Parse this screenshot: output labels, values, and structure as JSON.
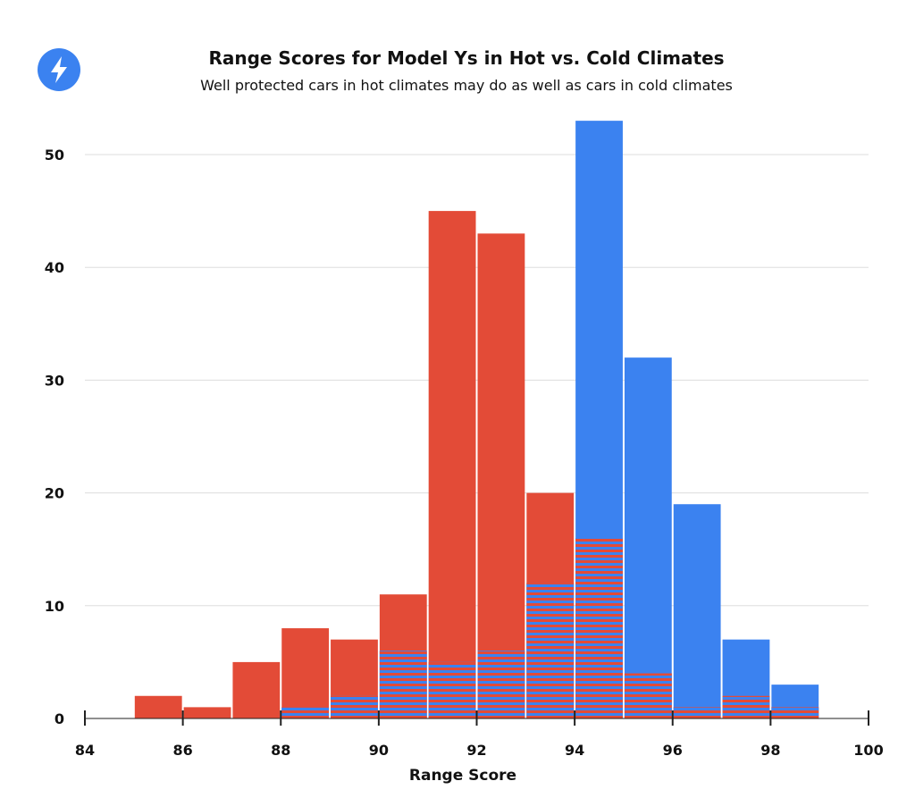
{
  "colors": {
    "hot": "#E34B37",
    "cold": "#3B82F0",
    "grid": "#dddddd",
    "logo": "#3B82F0"
  },
  "logo_icon": "lightning-bolt-icon",
  "chart_data": {
    "type": "bar",
    "title": "Range Scores for Model Ys in Hot vs. Cold Climates",
    "subtitle": "Well protected cars in hot climates may do as well as cars in cold climates",
    "xlabel": "Range Score",
    "ylabel": "",
    "xlim": [
      84,
      100
    ],
    "ylim": [
      0,
      53
    ],
    "x_ticks": [
      "84",
      "86",
      "88",
      "90",
      "92",
      "94",
      "96",
      "98",
      "100"
    ],
    "y_ticks": [
      "0",
      "10",
      "20",
      "30",
      "40",
      "50"
    ],
    "bin_width": 1,
    "bin_starts": [
      85,
      86,
      87,
      88,
      89,
      90,
      91,
      92,
      93,
      94,
      95,
      96,
      97,
      98
    ],
    "series": [
      {
        "name": "Hot climates",
        "color": "#E34B37",
        "values": [
          2,
          1,
          5,
          8,
          7,
          11,
          45,
          43,
          20,
          16,
          4,
          1,
          2,
          1
        ]
      },
      {
        "name": "Cold climates",
        "color": "#3B82F0",
        "values": [
          0,
          0,
          0,
          1,
          2,
          6,
          5,
          6,
          12,
          53,
          32,
          19,
          7,
          3
        ]
      }
    ]
  }
}
